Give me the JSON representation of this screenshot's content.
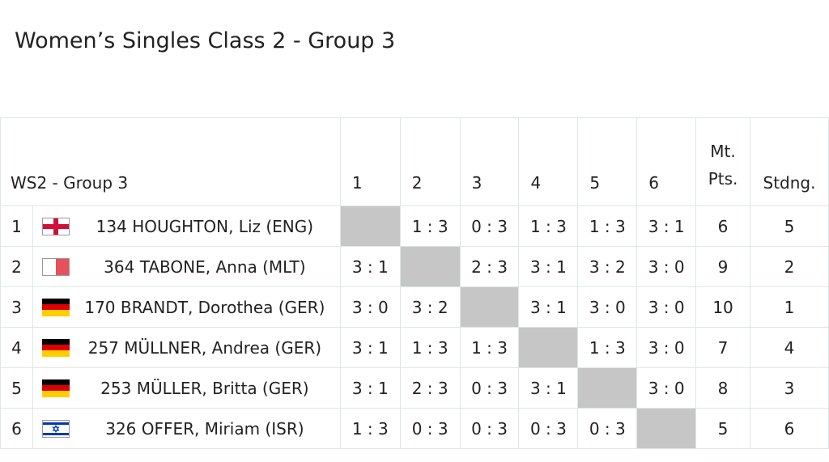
{
  "title": "Women’s Singles Class 2 - Group 3",
  "table": {
    "header": {
      "group": "WS2 - Group 3",
      "columns": [
        "1",
        "2",
        "3",
        "4",
        "5",
        "6"
      ],
      "points": "Mt. Pts.",
      "standing": "Stdng."
    },
    "rows": [
      {
        "rank": "1",
        "name": "134 HOUGHTON, Liz (ENG)",
        "results": [
          null,
          "1 : 3",
          "0 : 3",
          "1 : 3",
          "1 : 3",
          "3 : 1"
        ],
        "points": "6",
        "standing": "5"
      },
      {
        "rank": "2",
        "name": "364 TABONE, Anna (MLT)",
        "results": [
          "3 : 1",
          null,
          "2 : 3",
          "3 : 1",
          "3 : 2",
          "3 : 0"
        ],
        "points": "9",
        "standing": "2"
      },
      {
        "rank": "3",
        "name": "170 BRANDT, Dorothea (GER)",
        "results": [
          "3 : 0",
          "3 : 2",
          null,
          "3 : 1",
          "3 : 0",
          "3 : 0"
        ],
        "points": "10",
        "standing": "1"
      },
      {
        "rank": "4",
        "name": "257 MÜLLNER, Andrea (GER)",
        "results": [
          "3 : 1",
          "1 : 3",
          "1 : 3",
          null,
          "1 : 3",
          "3 : 0"
        ],
        "points": "7",
        "standing": "4"
      },
      {
        "rank": "5",
        "name": "253 MÜLLER, Britta (GER)",
        "results": [
          "3 : 1",
          "2 : 3",
          "0 : 3",
          "3 : 1",
          null,
          "3 : 0"
        ],
        "points": "8",
        "standing": "3"
      },
      {
        "rank": "6",
        "name": "326 OFFER, Miriam (ISR)",
        "results": [
          "1 : 3",
          "0 : 3",
          "0 : 3",
          "0 : 3",
          "0 : 3",
          null
        ],
        "points": "5",
        "standing": "6"
      }
    ]
  }
}
